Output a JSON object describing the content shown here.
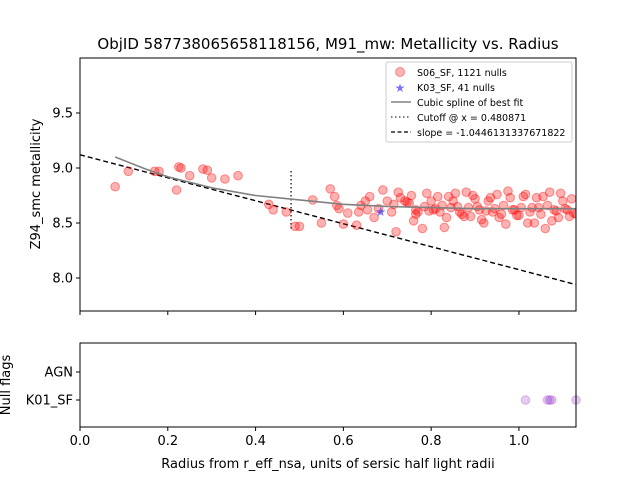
{
  "chart_data": [
    {
      "type": "scatter",
      "title": "ObjID 587738065658118156, M91_mw: Metallicity vs. Radius",
      "xlabel": "",
      "ylabel": "Z94_smc metallicity",
      "xlim": [
        0.0,
        1.13
      ],
      "ylim": [
        7.7,
        10.0
      ],
      "yticks": [
        8.0,
        8.5,
        9.0,
        9.5
      ],
      "grid": false,
      "legend_position": "top-right",
      "legend": [
        "S06_SF, 1121 nulls",
        "K03_SF, 41 nulls",
        "Cubic spline of best fit",
        "Cutoff @ x = 0.480871",
        "slope = -1.0446131337671822"
      ],
      "colors": {
        "s06": "#ff0000",
        "k03": "#0000ff",
        "spline": "#808080",
        "cutoff": "#555555",
        "slope": "#000000"
      },
      "series": [
        {
          "name": "S06_SF, 1121 nulls",
          "x": [
            0.08,
            0.11,
            0.17,
            0.18,
            0.22,
            0.23,
            0.225,
            0.25,
            0.28,
            0.29,
            0.3,
            0.33,
            0.36,
            0.43,
            0.44,
            0.47,
            0.49,
            0.5,
            0.53,
            0.55,
            0.57,
            0.58,
            0.59,
            0.6,
            0.61,
            0.63,
            0.64,
            0.65,
            0.66,
            0.67,
            0.68,
            0.69,
            0.7,
            0.71,
            0.72,
            0.73,
            0.74,
            0.75,
            0.76,
            0.77,
            0.78,
            0.79,
            0.8,
            0.81,
            0.82,
            0.83,
            0.84,
            0.85,
            0.86,
            0.87,
            0.88,
            0.89,
            0.9,
            0.91,
            0.92,
            0.93,
            0.94,
            0.95,
            0.96,
            0.97,
            0.98,
            0.99,
            1.0,
            1.01,
            1.02,
            1.03,
            1.04,
            1.05,
            1.06,
            1.07,
            1.08,
            1.09,
            1.1,
            1.11,
            1.12,
            1.13,
            0.585,
            0.635,
            0.655,
            0.715,
            0.745,
            0.765,
            0.785,
            0.805,
            0.825,
            0.845,
            0.865,
            0.885,
            0.905,
            0.925,
            0.945,
            0.965,
            0.985,
            1.005,
            1.025,
            1.045,
            1.065,
            1.085,
            1.105,
            1.125,
            0.765,
            0.795,
            0.835,
            0.875,
            0.915,
            0.955,
            0.995,
            1.035,
            1.075,
            1.115,
            0.725,
            0.755,
            0.815,
            0.855,
            0.895,
            0.935,
            0.975,
            1.015,
            1.055,
            1.095
          ],
          "y": [
            8.83,
            8.97,
            8.97,
            8.97,
            8.8,
            9.0,
            9.01,
            8.93,
            8.99,
            8.98,
            8.91,
            8.9,
            8.93,
            8.67,
            8.62,
            8.6,
            8.47,
            8.47,
            8.71,
            8.5,
            8.81,
            8.74,
            8.63,
            8.49,
            8.59,
            8.48,
            8.66,
            8.7,
            8.74,
            8.55,
            8.63,
            8.8,
            8.7,
            8.6,
            8.42,
            8.73,
            8.7,
            8.68,
            8.52,
            8.6,
            8.45,
            8.77,
            8.7,
            8.63,
            8.6,
            8.46,
            8.74,
            8.7,
            8.65,
            8.58,
            8.78,
            8.56,
            8.72,
            8.62,
            8.5,
            8.7,
            8.6,
            8.76,
            8.58,
            8.49,
            8.73,
            8.62,
            8.57,
            8.74,
            8.5,
            8.64,
            8.73,
            8.58,
            8.45,
            8.78,
            8.62,
            8.55,
            8.7,
            8.62,
            8.72,
            8.58,
            8.66,
            8.6,
            8.62,
            8.67,
            8.69,
            8.62,
            8.65,
            8.62,
            8.66,
            8.64,
            8.6,
            8.64,
            8.65,
            8.61,
            8.63,
            8.66,
            8.62,
            8.64,
            8.6,
            8.64,
            8.66,
            8.61,
            8.63,
            8.59,
            8.58,
            8.61,
            8.55,
            8.56,
            8.53,
            8.55,
            8.57,
            8.5,
            8.52,
            8.56,
            8.78,
            8.75,
            8.74,
            8.77,
            8.75,
            8.73,
            8.79,
            8.76,
            8.74,
            8.77
          ]
        },
        {
          "name": "K03_SF, 41 nulls",
          "x": [
            0.685
          ],
          "y": [
            8.6
          ]
        },
        {
          "name": "Cubic spline of best fit",
          "x": [
            0.08,
            0.15,
            0.2,
            0.3,
            0.4,
            0.5,
            0.6,
            0.7,
            0.8,
            0.9,
            1.0,
            1.13
          ],
          "y": [
            9.1,
            8.99,
            8.92,
            8.82,
            8.75,
            8.71,
            8.67,
            8.65,
            8.64,
            8.63,
            8.63,
            8.63
          ]
        },
        {
          "name": "Cutoff @ x = 0.480871",
          "x": [
            0.480871,
            0.480871
          ],
          "y": [
            8.45,
            8.99
          ]
        },
        {
          "name": "slope = -1.0446131337671822",
          "x": [
            0.0,
            1.13
          ],
          "y": [
            9.12,
            7.94
          ]
        }
      ]
    },
    {
      "type": "scatter",
      "title": "",
      "xlabel": "Radius from r_eff_nsa, units of sersic half light radii",
      "ylabel": "Null flags",
      "xlim": [
        0.0,
        1.13
      ],
      "xticks": [
        0.0,
        0.2,
        0.4,
        0.6,
        0.8,
        1.0
      ],
      "categories": [
        "K01_SF",
        "AGN"
      ],
      "color": "#9932cc",
      "series": [
        {
          "name": "",
          "x": [
            1.015,
            1.065,
            1.07,
            1.075,
            1.13
          ],
          "y": [
            "K01_SF",
            "K01_SF",
            "K01_SF",
            "K01_SF",
            "K01_SF"
          ]
        }
      ]
    }
  ]
}
